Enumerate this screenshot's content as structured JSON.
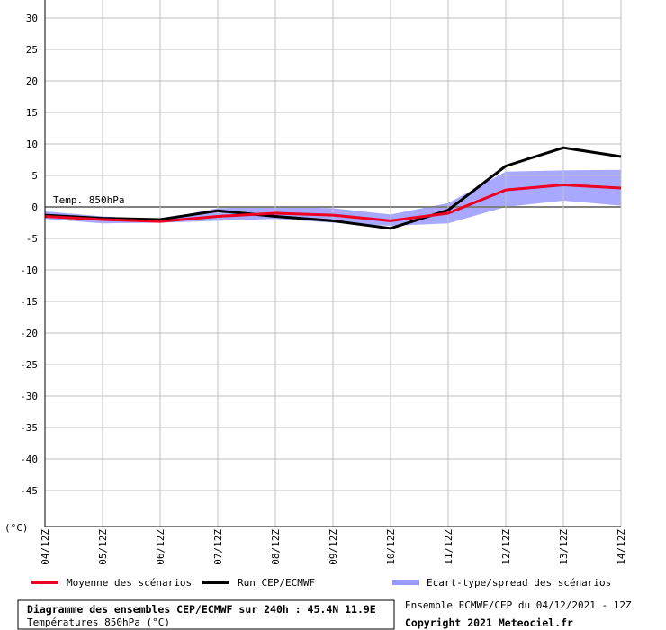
{
  "chart_data": {
    "type": "line",
    "title": "Diagramme des ensembles CEP/ECMWF sur 240h : 45.4N 11.9E",
    "subtitle": "Températures 850hPa (°C)",
    "ylabel": "(°C)",
    "annotation": "Temp. 850hPa",
    "run_info": "Ensemble ECMWF/CEP du 04/12/2021 - 12Z",
    "copyright": "Copyright 2021 Meteociel.fr",
    "ylim": [
      -50,
      30
    ],
    "yticks": [
      "30",
      "25",
      "20",
      "15",
      "10",
      "5",
      "0",
      "-5",
      "-10",
      "-15",
      "-20",
      "-25",
      "-30",
      "-35",
      "-40",
      "-45"
    ],
    "yticks_values": [
      30,
      25,
      20,
      15,
      10,
      5,
      0,
      -5,
      -10,
      -15,
      -20,
      -25,
      -30,
      -35,
      -40,
      -45
    ],
    "categories": [
      "04/12Z",
      "05/12Z",
      "06/12Z",
      "07/12Z",
      "08/12Z",
      "09/12Z",
      "10/12Z",
      "11/12Z",
      "12/12Z",
      "13/12Z",
      "14/12Z"
    ],
    "grid": true,
    "series": [
      {
        "name": "Moyenne des scénarios",
        "color": "#ee0022",
        "values": [
          -1.5,
          -2.0,
          -2.3,
          -1.5,
          -1.0,
          -1.3,
          -2.2,
          -1.0,
          2.7,
          3.5,
          3.0
        ]
      },
      {
        "name": "Run CEP/ECMWF",
        "color": "#000000",
        "values": [
          -1.3,
          -1.8,
          -2.0,
          -0.6,
          -1.5,
          -2.2,
          -3.4,
          -0.5,
          6.5,
          9.4,
          8.0
        ]
      }
    ],
    "spread": {
      "name": "Ecart-type/spread des scénarios",
      "color": "#9999ff",
      "lower": [
        -1.9,
        -2.6,
        -2.5,
        -2.2,
        -1.9,
        -2.5,
        -3.0,
        -2.6,
        0.0,
        1.0,
        0.2
      ],
      "upper": [
        -0.7,
        -1.5,
        -2.0,
        -0.2,
        0.0,
        -0.2,
        -1.2,
        0.6,
        5.6,
        5.8,
        5.9
      ]
    }
  }
}
